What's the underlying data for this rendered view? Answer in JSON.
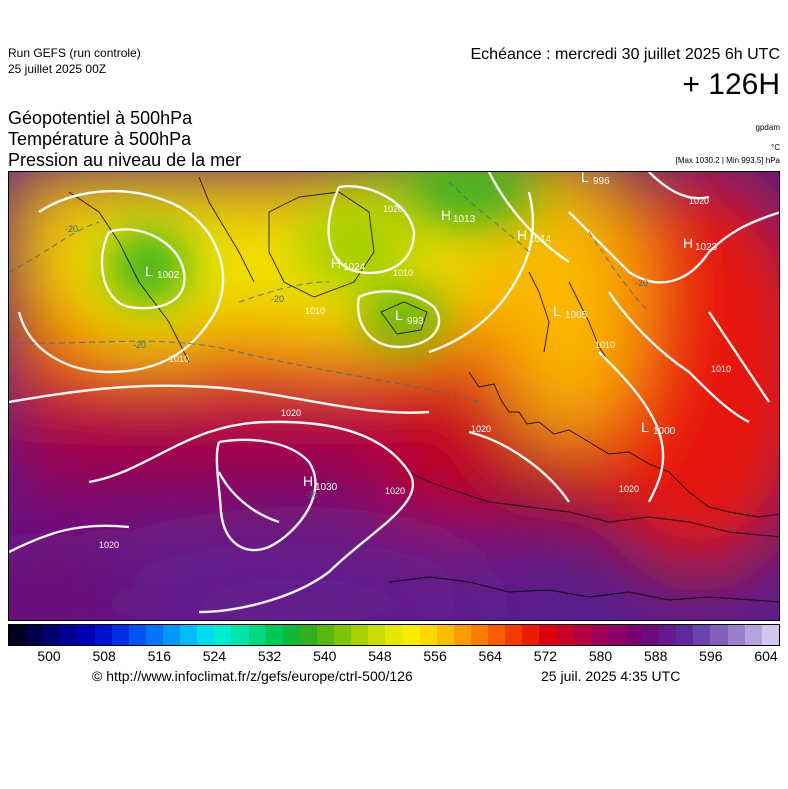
{
  "header": {
    "run_line1": "Run GEFS (run controle)",
    "run_line2": "25 juillet 2025 00Z",
    "echeance": "Echéance : mercredi 30 juillet 2025 6h UTC",
    "lead_time": "+ 126H"
  },
  "titles": {
    "line1": "Géopotentiel à 500hPa",
    "line2": "Température à 500hPa",
    "line3": "Pression au niveau de la mer"
  },
  "units": {
    "geopotential": "gpdam",
    "temperature": "°C",
    "pressure_range": "[Max 1030.2 | Min 993.5] hPa"
  },
  "map": {
    "centers": [
      {
        "type": "H",
        "value": "1013"
      },
      {
        "type": "H",
        "value": "1014"
      },
      {
        "type": "H",
        "value": "1023"
      },
      {
        "type": "L",
        "value": "1002"
      },
      {
        "type": "H",
        "value": "1024"
      },
      {
        "type": "L",
        "value": "993"
      },
      {
        "type": "L",
        "value": "1005"
      },
      {
        "type": "L",
        "value": "1000"
      },
      {
        "type": "H",
        "value": "1030"
      },
      {
        "type": "L",
        "value": "996"
      }
    ],
    "isobar_labels": [
      "1020",
      "1010",
      "1010",
      "1020",
      "1020",
      "1020",
      "1020",
      "1020",
      "1010",
      "1010",
      "1020",
      "1010"
    ],
    "temp_labels": [
      "-20",
      "-20",
      "-20",
      "-20",
      "-20"
    ]
  },
  "colorbar": {
    "colors": [
      "#000020",
      "#00004a",
      "#000070",
      "#000094",
      "#0000b6",
      "#0014d0",
      "#0032e4",
      "#0052f4",
      "#0074fc",
      "#0098fc",
      "#00bcf8",
      "#00dcec",
      "#00ecd0",
      "#00e4a8",
      "#00d880",
      "#00c858",
      "#10b838",
      "#30b020",
      "#58b810",
      "#80c408",
      "#a8d000",
      "#c8dc00",
      "#e4e800",
      "#f8ec00",
      "#fcd800",
      "#fcbc00",
      "#fc9c00",
      "#fc7c00",
      "#fa5c00",
      "#f43c00",
      "#ec1c00",
      "#dc0010",
      "#c80028",
      "#b40040",
      "#a00058",
      "#8c0068",
      "#780070",
      "#6c0a7c",
      "#641a8c",
      "#5c2a9c",
      "#6a44ac",
      "#8060bc",
      "#9a80cc",
      "#b6a2dc",
      "#d2c6ec"
    ],
    "ticks": [
      "500",
      "508",
      "516",
      "524",
      "532",
      "540",
      "548",
      "556",
      "564",
      "572",
      "580",
      "588",
      "596",
      "604"
    ]
  },
  "footer": {
    "credit": "© http://www.infoclimat.fr/z/gefs/europe/ctrl-500/126",
    "generated": "25 juil. 2025  4:35 UTC"
  }
}
